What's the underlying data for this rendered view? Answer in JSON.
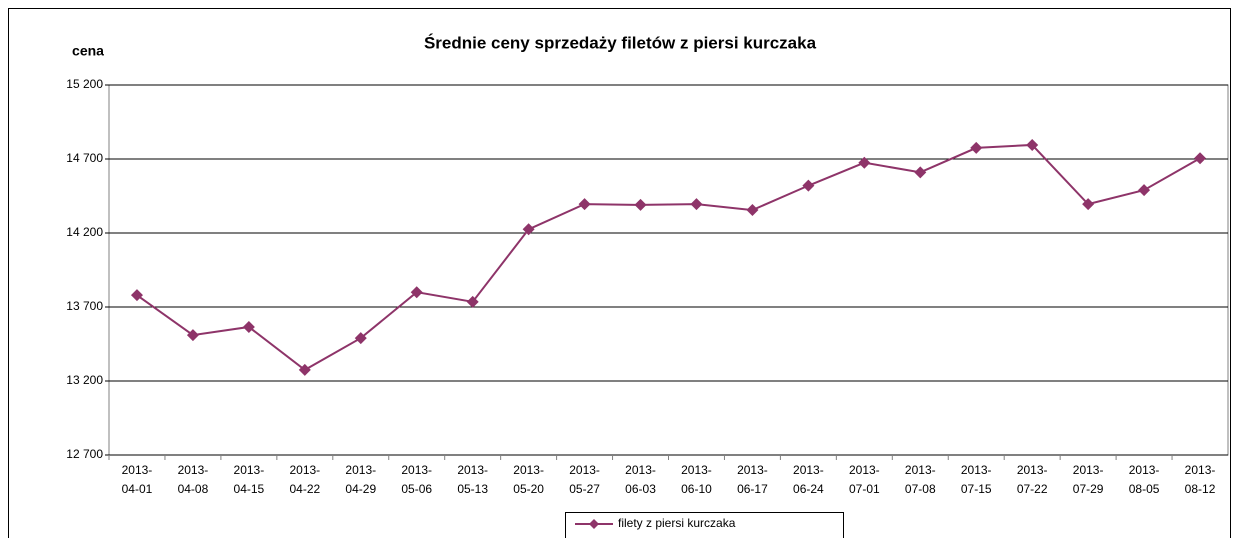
{
  "chart_data": {
    "type": "line",
    "title": "Średnie ceny sprzedaży filetów z piersi kurczaka",
    "y_label": "cena",
    "categories": [
      "2013-04-01",
      "2013-04-08",
      "2013-04-15",
      "2013-04-22",
      "2013-04-29",
      "2013-05-06",
      "2013-05-13",
      "2013-05-20",
      "2013-05-27",
      "2013-06-03",
      "2013-06-10",
      "2013-06-17",
      "2013-06-24",
      "2013-07-01",
      "2013-07-08",
      "2013-07-15",
      "2013-07-22",
      "2013-07-29",
      "2013-08-05",
      "2013-08-12"
    ],
    "series": [
      {
        "name": "filety z piersi kurczaka",
        "color": "#8e3469",
        "values": [
          13780,
          13510,
          13565,
          13275,
          13490,
          13800,
          13735,
          14225,
          14395,
          14390,
          14395,
          14355,
          14520,
          14675,
          14610,
          14775,
          14795,
          14395,
          14490,
          14705
        ]
      }
    ],
    "ylim": [
      12700,
      15200
    ],
    "yticks": [
      {
        "value": 12700,
        "label": "12 700"
      },
      {
        "value": 13200,
        "label": "13 200"
      },
      {
        "value": 13700,
        "label": "13 700"
      },
      {
        "value": 14200,
        "label": "14 200"
      },
      {
        "value": 14700,
        "label": "14 700"
      },
      {
        "value": 15200,
        "label": "15 200"
      }
    ],
    "grid": true,
    "legend": "bottom"
  }
}
